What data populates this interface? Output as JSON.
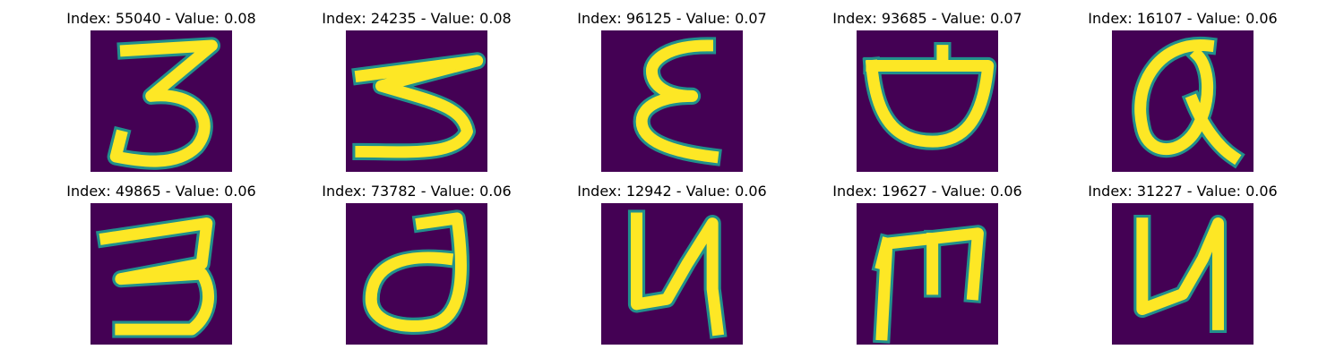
{
  "colors": {
    "background": "#440154",
    "stroke": "#fde725",
    "edge": "#21908c"
  },
  "panels": [
    {
      "title": "Index: 55040 - Value: 0.08",
      "glyph": "3"
    },
    {
      "title": "Index: 24235 - Value: 0.08",
      "glyph": "3"
    },
    {
      "title": "Index: 96125 - Value: 0.07",
      "glyph": "3"
    },
    {
      "title": "Index: 93685 - Value: 0.07",
      "glyph": "D"
    },
    {
      "title": "Index: 16107 - Value: 0.06",
      "glyph": "Q"
    },
    {
      "title": "Index: 49865 - Value: 0.06",
      "glyph": "3"
    },
    {
      "title": "Index: 73782 - Value: 0.06",
      "glyph": "d"
    },
    {
      "title": "Index: 12942 - Value: 0.06",
      "glyph": "4"
    },
    {
      "title": "Index: 19627 - Value: 0.06",
      "glyph": "m"
    },
    {
      "title": "Index: 31227 - Value: 0.06",
      "glyph": "4"
    }
  ]
}
